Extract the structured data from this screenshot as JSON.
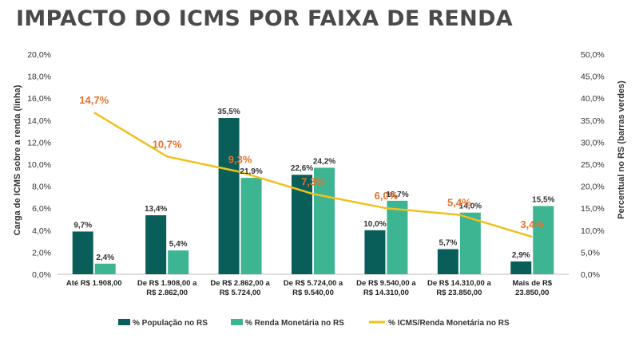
{
  "title": "IMPACTO DO ICMS POR FAIXA DE RENDA",
  "colors": {
    "title": "#4a4a4a",
    "population": "#0a5e5a",
    "income": "#3db593",
    "line": "#f0c020",
    "line_label": "#e8702a"
  },
  "chart_data": {
    "type": "bar",
    "categories": [
      [
        "Até  R$ 1.908,00"
      ],
      [
        "De R$ 1.908,00 a",
        "R$ 2.862,00"
      ],
      [
        "De R$ 2.862,00 a",
        "R$ 5.724,00"
      ],
      [
        "De R$ 5.724,00 a",
        "R$ 9.540,00"
      ],
      [
        "De R$ 9.540,00 a",
        "R$ 14.310,00"
      ],
      [
        "De R$ 14.310,00 a",
        "R$ 23.850,00"
      ],
      [
        "Mais de R$",
        "23.850,00"
      ]
    ],
    "left_axis": {
      "label": "Carga de ICMS sobre a renda (linha)",
      "range": [
        0,
        20
      ],
      "ticks": [
        "0,0%",
        "2,0%",
        "4,0%",
        "6,0%",
        "8,0%",
        "10,0%",
        "12,0%",
        "14,0%",
        "16,0%",
        "18,0%",
        "20,0%"
      ]
    },
    "right_axis": {
      "label": "Percentual no RS (barras verdes)",
      "range": [
        0,
        50
      ],
      "ticks": [
        "0,0%",
        "5,0%",
        "10,0%",
        "15,0%",
        "20,0%",
        "25,0%",
        "30,0%",
        "35,0%",
        "40,0%",
        "45,0%",
        "50,0%"
      ]
    },
    "bar_series": [
      {
        "name": "% População no RS",
        "axis": "right",
        "values": [
          9.7,
          13.4,
          35.5,
          22.6,
          10.0,
          5.7,
          2.9
        ],
        "labels": [
          "9,7%",
          "13,4%",
          "35,5%",
          "22,6%",
          "10,0%",
          "5,7%",
          "2,9%"
        ]
      },
      {
        "name": "% Renda Monetária no RS",
        "axis": "right",
        "values": [
          2.4,
          5.4,
          21.9,
          24.2,
          16.7,
          14.0,
          15.5
        ],
        "labels": [
          "2,4%",
          "5,4%",
          "21,9%",
          "24,2%",
          "16,7%",
          "14,0%",
          "15,5%"
        ]
      }
    ],
    "line_series": {
      "name": "% ICMS/Renda Monetária no RS",
      "axis": "left",
      "values": [
        14.7,
        10.7,
        9.3,
        7.3,
        6.0,
        5.4,
        3.4
      ],
      "labels": [
        "14,7%",
        "10,7%",
        "9,3%",
        "7,3%",
        "6,0%",
        "5,4%",
        "3,4%"
      ]
    },
    "grid": false,
    "legend_position": "bottom"
  }
}
